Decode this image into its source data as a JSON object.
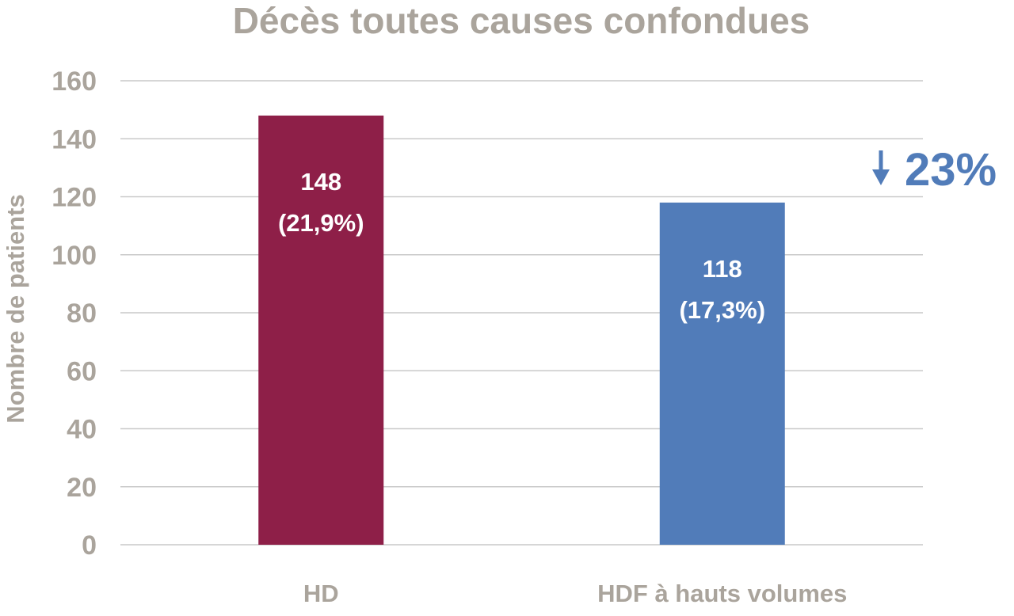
{
  "chart_data": {
    "type": "bar",
    "title": "Décès toutes causes confondues",
    "xlabel": "",
    "ylabel": "Nombre de patients",
    "ylim": [
      0,
      160
    ],
    "yticks": [
      0,
      20,
      40,
      60,
      80,
      100,
      120,
      140,
      160
    ],
    "grid": true,
    "categories": [
      "HD",
      "HDF à hauts volumes"
    ],
    "values": [
      148,
      118
    ],
    "data_labels": [
      {
        "count": "148",
        "percent": "(21,9%)"
      },
      {
        "count": "118",
        "percent": "(17,3%)"
      }
    ],
    "colors": [
      "#8e1f48",
      "#517cb9"
    ],
    "annotation": {
      "text": "23%",
      "direction": "down",
      "color": "#517cb9"
    }
  }
}
